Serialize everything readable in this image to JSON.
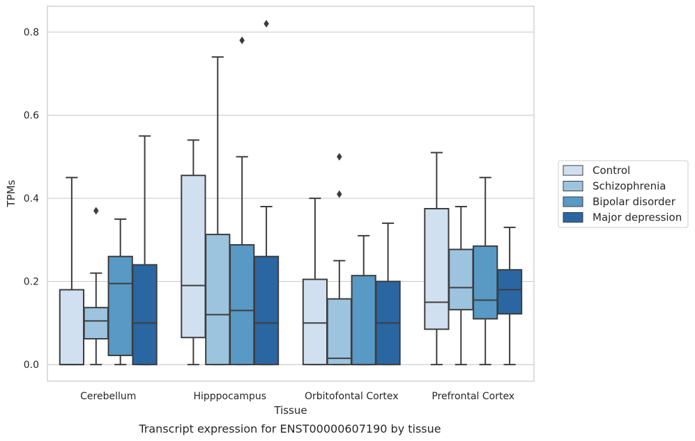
{
  "chart_data": {
    "type": "box",
    "caption": "Transcript expression for ENST00000607190 by tissue",
    "xlabel": "Tissue",
    "ylabel": "TPMs",
    "ylim": [
      -0.04,
      0.862
    ],
    "yticks": [
      {
        "value": 0.0,
        "label": "0.0"
      },
      {
        "value": 0.2,
        "label": "0.2"
      },
      {
        "value": 0.4,
        "label": "0.4"
      },
      {
        "value": 0.6,
        "label": "0.6"
      },
      {
        "value": 0.8,
        "label": "0.8"
      }
    ],
    "grid": "horizontal",
    "legend_position": "right",
    "categories": [
      "Cerebellum",
      "Hipppocampus",
      "Orbitofontal Cortex",
      "Prefrontal Cortex"
    ],
    "series": [
      {
        "name": "Control",
        "color": "#d0e0f0",
        "boxes": [
          {
            "whislo": 0.0,
            "q1": 0.0,
            "med": 0.0,
            "q3": 0.18,
            "whishi": 0.45,
            "fliers": []
          },
          {
            "whislo": 0.0,
            "q1": 0.065,
            "med": 0.19,
            "q3": 0.455,
            "whishi": 0.54,
            "fliers": []
          },
          {
            "whislo": 0.0,
            "q1": 0.0,
            "med": 0.1,
            "q3": 0.205,
            "whishi": 0.4,
            "fliers": []
          },
          {
            "whislo": 0.0,
            "q1": 0.085,
            "med": 0.15,
            "q3": 0.375,
            "whishi": 0.51,
            "fliers": []
          }
        ]
      },
      {
        "name": "Schizophrenia",
        "color": "#9cc4df",
        "boxes": [
          {
            "whislo": 0.0,
            "q1": 0.062,
            "med": 0.105,
            "q3": 0.137,
            "whishi": 0.22,
            "fliers": [
              0.37
            ]
          },
          {
            "whislo": 0.0,
            "q1": 0.0,
            "med": 0.12,
            "q3": 0.313,
            "whishi": 0.74,
            "fliers": []
          },
          {
            "whislo": 0.0,
            "q1": 0.0,
            "med": 0.015,
            "q3": 0.158,
            "whishi": 0.25,
            "fliers": [
              0.41,
              0.5
            ]
          },
          {
            "whislo": 0.0,
            "q1": 0.132,
            "med": 0.185,
            "q3": 0.277,
            "whishi": 0.38,
            "fliers": []
          }
        ]
      },
      {
        "name": "Bipolar disorder",
        "color": "#5899c5",
        "boxes": [
          {
            "whislo": 0.0,
            "q1": 0.022,
            "med": 0.195,
            "q3": 0.26,
            "whishi": 0.35,
            "fliers": []
          },
          {
            "whislo": 0.0,
            "q1": 0.0,
            "med": 0.13,
            "q3": 0.288,
            "whishi": 0.5,
            "fliers": [
              0.78
            ]
          },
          {
            "whislo": 0.0,
            "q1": 0.0,
            "med": 0.0,
            "q3": 0.214,
            "whishi": 0.31,
            "fliers": []
          },
          {
            "whislo": 0.0,
            "q1": 0.11,
            "med": 0.155,
            "q3": 0.285,
            "whishi": 0.45,
            "fliers": []
          }
        ]
      },
      {
        "name": "Major depression",
        "color": "#2a66a2",
        "boxes": [
          {
            "whislo": 0.0,
            "q1": 0.0,
            "med": 0.1,
            "q3": 0.24,
            "whishi": 0.55,
            "fliers": []
          },
          {
            "whislo": 0.0,
            "q1": 0.0,
            "med": 0.1,
            "q3": 0.26,
            "whishi": 0.38,
            "fliers": [
              0.82
            ]
          },
          {
            "whislo": 0.0,
            "q1": 0.0,
            "med": 0.1,
            "q3": 0.2,
            "whishi": 0.34,
            "fliers": []
          },
          {
            "whislo": 0.0,
            "q1": 0.122,
            "med": 0.18,
            "q3": 0.228,
            "whishi": 0.33,
            "fliers": []
          }
        ]
      }
    ]
  }
}
